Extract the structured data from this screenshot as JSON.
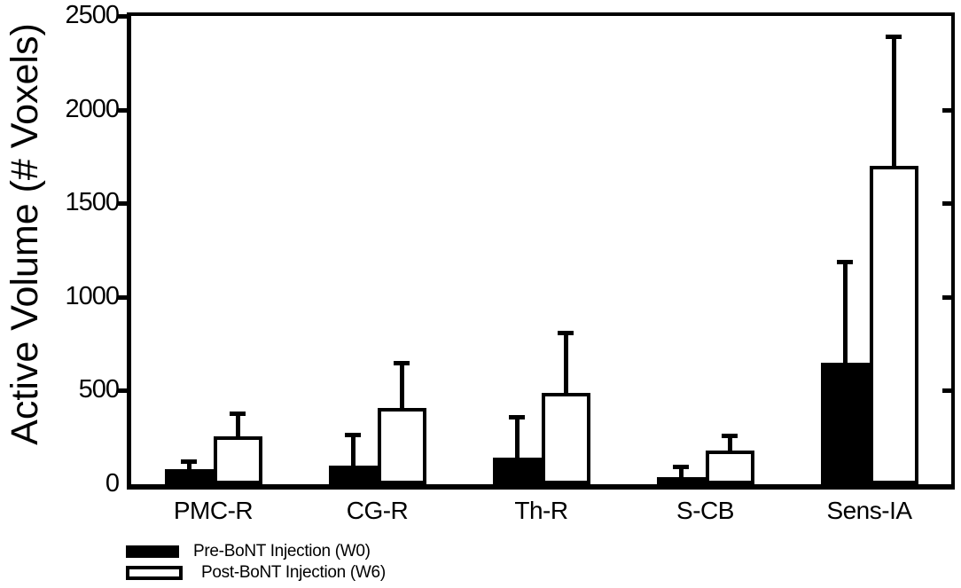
{
  "figure": {
    "background": "#ffffff",
    "axis_color": "#000000"
  },
  "chart_data": {
    "type": "bar",
    "title": "",
    "xlabel": "",
    "ylabel": "Active Volume (# Voxels)",
    "ylim": [
      0,
      2500
    ],
    "yticks": [
      0,
      500,
      1000,
      1500,
      2000,
      2500
    ],
    "grid": false,
    "frame": "full-box",
    "error_bars": "upper-only",
    "legend_position": "bottom-left",
    "categories": [
      "PMC-R",
      "CG-R",
      "Th-R",
      "S-CB",
      "Sens-IA"
    ],
    "series": [
      {
        "name": "Pre-BoNT Injection (W0)",
        "fill": "#000000",
        "values": [
          80,
          100,
          140,
          40,
          650
        ],
        "errors_plus": [
          55,
          175,
          230,
          65,
          550
        ]
      },
      {
        "name": "Post-BoNT Injection (W6)",
        "fill": "#ffffff",
        "values": [
          255,
          405,
          490,
          180,
          1700
        ],
        "errors_plus": [
          135,
          255,
          330,
          90,
          700
        ]
      }
    ]
  }
}
